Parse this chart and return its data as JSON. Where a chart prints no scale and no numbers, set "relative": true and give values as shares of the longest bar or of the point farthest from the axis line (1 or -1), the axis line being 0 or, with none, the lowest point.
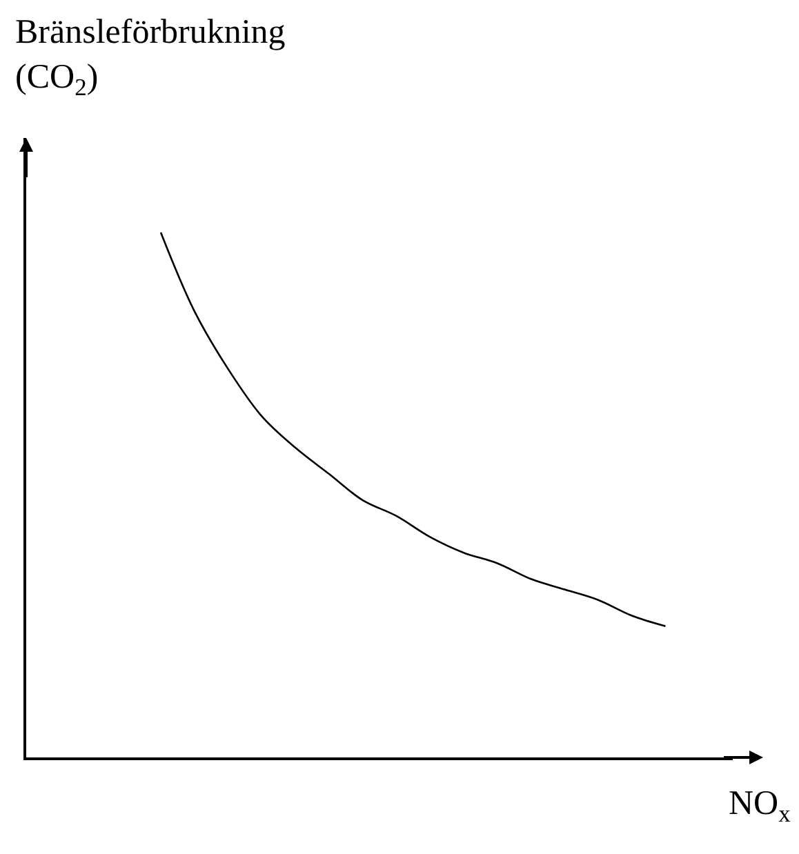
{
  "chart_data": {
    "type": "line",
    "relative": true,
    "xlabel": "NO$_{x}$",
    "ylabel": "Bränsleförbrukning\n(CO$_{2}$)",
    "categories": [
      null,
      null,
      null,
      null,
      null,
      null,
      null,
      null,
      null,
      null,
      null,
      null,
      null,
      null,
      null,
      null,
      null,
      null,
      null,
      null,
      null,
      null
    ],
    "values": [
      null,
      null,
      null,
      null,
      1.0,
      0.85,
      0.74,
      0.65,
      0.59,
      0.54,
      0.49,
      0.46,
      0.42,
      0.39,
      0.37,
      0.34,
      0.32,
      0.3,
      0.27,
      0.25,
      null,
      null
    ],
    "color": "#000000",
    "marker": "none",
    "line_style": "solid",
    "tick_labels": false
  }
}
